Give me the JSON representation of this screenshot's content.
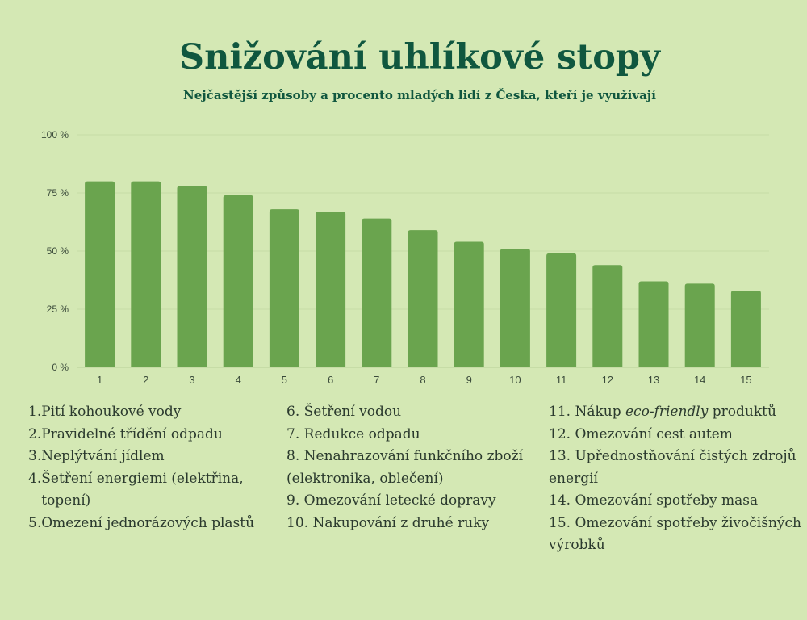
{
  "title": "Snižování uhlíkové stopy",
  "subtitle": "Nejčastější způsoby a procento mladých lidí z Česka, kteří je využívají",
  "colors": {
    "background": "#d4e8b4",
    "bar": "#6aa44e",
    "title": "#10573f",
    "grid": "#c6dca6",
    "axis_text": "#3a4a3a"
  },
  "chart_data": {
    "type": "bar",
    "categories": [
      "1",
      "2",
      "3",
      "4",
      "5",
      "6",
      "7",
      "8",
      "9",
      "10",
      "11",
      "12",
      "13",
      "14",
      "15"
    ],
    "values": [
      80,
      80,
      78,
      74,
      68,
      67,
      64,
      59,
      54,
      51,
      49,
      44,
      37,
      36,
      33
    ],
    "yticks": [
      "0 %",
      "25 %",
      "50 %",
      "75 %",
      "100 %"
    ],
    "ylim": [
      0,
      100
    ],
    "grid": true
  },
  "legend": {
    "col1": [
      {
        "num": "1.",
        "text": "Pití kohoukové vody"
      },
      {
        "num": "2.",
        "text": "Pravidelné třídění odpadu"
      },
      {
        "num": "3.",
        "text": "Neplýtvání jídlem"
      },
      {
        "num": "4.",
        "text": "Šetření energiemi (elektřina, topení)"
      },
      {
        "num": "5.",
        "text": "Omezení jednorázových plastů"
      }
    ],
    "col2": [
      {
        "num": "6.",
        "text": "Šetření vodou"
      },
      {
        "num": "7.",
        "text": "Redukce odpadu"
      },
      {
        "num": "8.",
        "text": "Nenahrazování funkčního zboží (elektronika, oblečení)"
      },
      {
        "num": "9.",
        "text": "Omezování letecké dopravy"
      },
      {
        "num": "10.",
        "text": "Nakupování z druhé ruky"
      }
    ],
    "col3": [
      {
        "num": "11.",
        "pre": "Nákup ",
        "em": "eco-friendly",
        "post": " produktů"
      },
      {
        "num": "12.",
        "text": "Omezování cest autem"
      },
      {
        "num": "13.",
        "text": "Upřednostňování čistých zdrojů energií"
      },
      {
        "num": "14.",
        "text": "Omezování spotřeby masa"
      },
      {
        "num": "15.",
        "text": "Omezování spotřeby živočišných výrobků"
      }
    ]
  }
}
